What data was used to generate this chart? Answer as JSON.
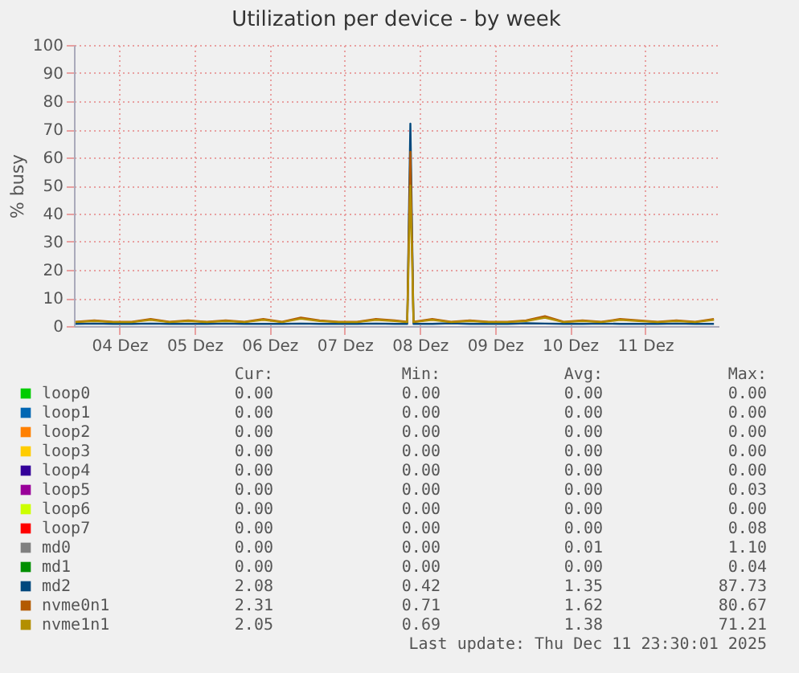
{
  "chart_data": {
    "type": "line",
    "title": "Utilization per device - by week",
    "ylabel": "% busy",
    "x": [
      "2025-12-03T10:00",
      "2025-12-03T16:00",
      "2025-12-03T22:00",
      "2025-12-04T04:00",
      "2025-12-04T10:00",
      "2025-12-04T16:00",
      "2025-12-04T22:00",
      "2025-12-05T04:00",
      "2025-12-05T10:00",
      "2025-12-05T16:00",
      "2025-12-05T22:00",
      "2025-12-06T04:00",
      "2025-12-06T10:00",
      "2025-12-06T16:00",
      "2025-12-06T22:00",
      "2025-12-07T04:00",
      "2025-12-07T10:00",
      "2025-12-07T16:00",
      "2025-12-07T20:00",
      "2025-12-07T21:00",
      "2025-12-07T22:00",
      "2025-12-08T04:00",
      "2025-12-08T10:00",
      "2025-12-08T16:00",
      "2025-12-08T22:00",
      "2025-12-09T04:00",
      "2025-12-09T10:00",
      "2025-12-09T16:00",
      "2025-12-09T22:00",
      "2025-12-10T04:00",
      "2025-12-10T10:00",
      "2025-12-10T16:00",
      "2025-12-10T22:00",
      "2025-12-11T04:00",
      "2025-12-11T10:00",
      "2025-12-11T16:00",
      "2025-12-11T22:00"
    ],
    "series": [
      {
        "name": "loop0",
        "color": "#00cc00",
        "values": [
          null,
          null,
          null,
          null,
          null,
          null,
          null,
          null,
          null,
          null,
          null,
          null,
          null,
          null,
          null,
          null,
          null,
          null,
          null,
          null,
          null,
          null,
          null,
          null,
          null,
          null,
          null,
          null,
          null,
          null,
          null,
          null,
          null,
          null,
          null,
          null,
          null
        ]
      },
      {
        "name": "loop1",
        "color": "#0066b3",
        "values": [
          null,
          null,
          null,
          null,
          null,
          null,
          null,
          null,
          null,
          null,
          null,
          null,
          null,
          null,
          null,
          null,
          null,
          null,
          null,
          null,
          null,
          null,
          null,
          null,
          null,
          null,
          null,
          null,
          null,
          null,
          null,
          null,
          null,
          null,
          null,
          null,
          null
        ]
      },
      {
        "name": "loop2",
        "color": "#ff8000",
        "values": [
          null,
          null,
          null,
          null,
          null,
          null,
          null,
          null,
          null,
          null,
          null,
          null,
          null,
          null,
          null,
          null,
          null,
          null,
          null,
          null,
          null,
          null,
          null,
          null,
          null,
          null,
          null,
          null,
          null,
          null,
          null,
          null,
          null,
          null,
          null,
          null,
          null
        ]
      },
      {
        "name": "loop3",
        "color": "#ffcc00",
        "values": [
          null,
          null,
          null,
          null,
          null,
          null,
          null,
          null,
          null,
          null,
          null,
          null,
          null,
          null,
          null,
          null,
          null,
          null,
          null,
          null,
          null,
          null,
          null,
          null,
          null,
          null,
          null,
          null,
          null,
          null,
          null,
          null,
          null,
          null,
          null,
          null,
          null
        ]
      },
      {
        "name": "loop4",
        "color": "#330099",
        "values": [
          null,
          null,
          null,
          null,
          null,
          null,
          null,
          null,
          null,
          null,
          null,
          null,
          null,
          null,
          null,
          null,
          null,
          null,
          null,
          null,
          null,
          null,
          null,
          null,
          null,
          null,
          null,
          null,
          null,
          null,
          null,
          null,
          null,
          null,
          null,
          null,
          null
        ]
      },
      {
        "name": "loop5",
        "color": "#990099",
        "values": [
          null,
          null,
          null,
          null,
          null,
          null,
          null,
          null,
          null,
          null,
          null,
          null,
          null,
          null,
          null,
          null,
          null,
          null,
          null,
          null,
          null,
          null,
          null,
          null,
          null,
          null,
          null,
          null,
          null,
          null,
          null,
          null,
          null,
          null,
          null,
          null,
          null
        ]
      },
      {
        "name": "loop6",
        "color": "#ccff00",
        "values": [
          null,
          null,
          null,
          null,
          null,
          null,
          null,
          null,
          null,
          null,
          null,
          null,
          null,
          null,
          null,
          null,
          null,
          null,
          null,
          null,
          null,
          null,
          null,
          null,
          null,
          null,
          null,
          null,
          null,
          null,
          null,
          null,
          null,
          null,
          null,
          null,
          null
        ]
      },
      {
        "name": "loop7",
        "color": "#ff0000",
        "values": [
          null,
          null,
          null,
          null,
          null,
          null,
          null,
          null,
          null,
          null,
          null,
          null,
          null,
          null,
          null,
          null,
          null,
          null,
          null,
          null,
          null,
          null,
          null,
          null,
          null,
          null,
          null,
          null,
          null,
          null,
          null,
          null,
          null,
          null,
          null,
          null,
          null
        ]
      },
      {
        "name": "md0",
        "color": "#808080",
        "values": [
          null,
          null,
          null,
          null,
          null,
          null,
          null,
          null,
          null,
          null,
          null,
          null,
          null,
          null,
          null,
          null,
          null,
          null,
          null,
          null,
          null,
          null,
          null,
          null,
          null,
          null,
          null,
          null,
          null,
          null,
          null,
          null,
          null,
          null,
          null,
          null,
          null
        ]
      },
      {
        "name": "md1",
        "color": "#008f00",
        "values": [
          null,
          null,
          null,
          null,
          null,
          null,
          null,
          null,
          null,
          null,
          null,
          null,
          null,
          null,
          null,
          null,
          null,
          null,
          null,
          null,
          null,
          null,
          null,
          null,
          null,
          null,
          null,
          null,
          null,
          null,
          null,
          null,
          null,
          null,
          null,
          null,
          null
        ]
      },
      {
        "name": "md2",
        "color": "#00487d",
        "values": [
          0.8,
          0.9,
          0.8,
          0.8,
          0.9,
          0.8,
          0.8,
          0.8,
          0.9,
          0.8,
          0.8,
          0.8,
          0.9,
          0.8,
          0.8,
          0.8,
          0.9,
          0.8,
          0.8,
          72,
          0.8,
          0.8,
          1,
          0.8,
          0.8,
          0.8,
          1,
          0.9,
          0.8,
          0.8,
          0.9,
          0.8,
          0.8,
          0.8,
          0.9,
          0.8,
          0.8
        ]
      },
      {
        "name": "nvme0n1",
        "color": "#b35a00",
        "values": [
          1.5,
          2,
          1.5,
          1.5,
          2.5,
          1.5,
          2,
          1.5,
          2,
          1.5,
          2.5,
          1.5,
          3,
          2,
          1.5,
          1.5,
          2.5,
          2,
          1.5,
          62,
          1.5,
          2.5,
          1.5,
          2,
          1.5,
          1.5,
          2,
          3.5,
          1.5,
          2,
          1.5,
          2.5,
          2,
          1.5,
          2,
          1.5,
          2.5
        ]
      },
      {
        "name": "nvme1n1",
        "color": "#b38f00",
        "values": [
          1.4,
          1.8,
          1.4,
          1.4,
          2.2,
          1.4,
          1.8,
          1.4,
          1.8,
          1.4,
          2.2,
          1.4,
          2.6,
          1.8,
          1.4,
          1.4,
          2.2,
          1.8,
          1.4,
          50,
          1.4,
          2.2,
          1.4,
          1.8,
          1.4,
          1.4,
          1.8,
          3,
          1.4,
          1.8,
          1.4,
          2.2,
          1.8,
          1.4,
          1.8,
          1.4,
          2.2
        ]
      }
    ],
    "xlim": [
      "2025-12-03T09:30",
      "2025-12-11T23:30"
    ],
    "xticks": [
      {
        "value": "2025-12-04",
        "label": "04 Dez"
      },
      {
        "value": "2025-12-05",
        "label": "05 Dez"
      },
      {
        "value": "2025-12-06",
        "label": "06 Dez"
      },
      {
        "value": "2025-12-07",
        "label": "07 Dez"
      },
      {
        "value": "2025-12-08",
        "label": "08 Dez"
      },
      {
        "value": "2025-12-09",
        "label": "09 Dez"
      },
      {
        "value": "2025-12-10",
        "label": "10 Dez"
      },
      {
        "value": "2025-12-11",
        "label": "11 Dez"
      }
    ],
    "ylim": [
      0,
      100
    ],
    "yticks": [
      0,
      10,
      20,
      30,
      40,
      50,
      60,
      70,
      80,
      90,
      100
    ],
    "grid": true,
    "legend": "bottom",
    "annotations": [
      "Cur:",
      "Min:",
      "Avg:",
      "Max:",
      "0.00",
      "0.00",
      "0.00",
      "0.00",
      "0.00",
      "0.00",
      "0.00",
      "0.00",
      "0.00",
      "0.00",
      "0.00",
      "0.00",
      "0.00",
      "0.00",
      "0.00",
      "0.00",
      "0.00",
      "0.00",
      "0.00",
      "0.00",
      "0.00",
      "0.00",
      "0.00",
      "0.03",
      "0.00",
      "0.00",
      "0.00",
      "0.00",
      "0.00",
      "0.00",
      "0.00",
      "0.08",
      "0.00",
      "0.00",
      "0.01",
      "1.10",
      "0.00",
      "0.00",
      "0.00",
      "0.04",
      "2.08",
      "0.42",
      "1.35",
      "87.73",
      "2.31",
      "0.71",
      "1.62",
      "80.67",
      "2.05",
      "0.69",
      "1.38",
      "71.21",
      "Last update: Thu Dec 11 23:30:01 2025"
    ]
  }
}
